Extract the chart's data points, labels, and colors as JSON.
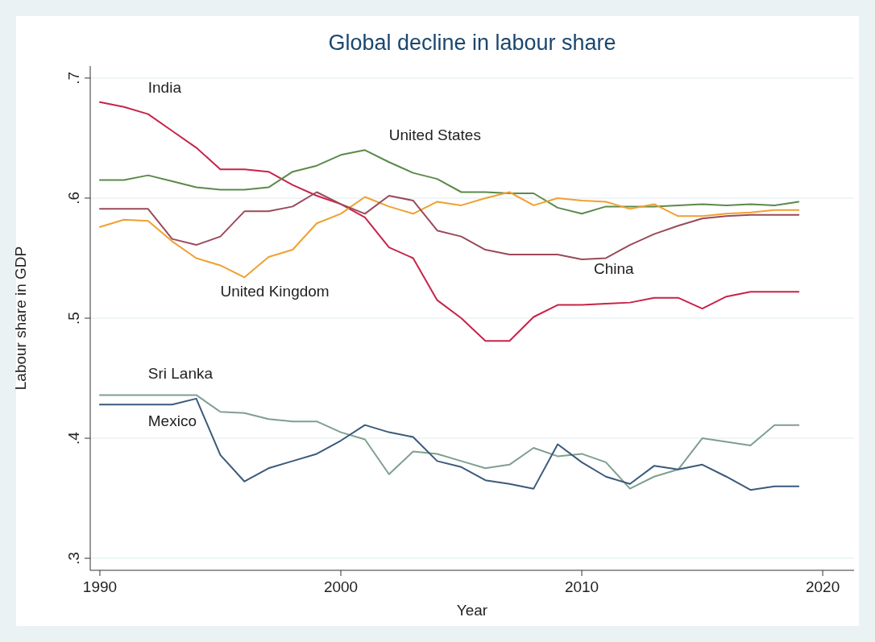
{
  "chart_data": {
    "type": "line",
    "title": "Global decline in labour share",
    "xlabel": "Year",
    "ylabel": "Labour share in GDP",
    "x": [
      1990,
      1991,
      1992,
      1993,
      1994,
      1995,
      1996,
      1997,
      1998,
      1999,
      2000,
      2001,
      2002,
      2003,
      2004,
      2005,
      2006,
      2007,
      2008,
      2009,
      2010,
      2011,
      2012,
      2013,
      2014,
      2015,
      2016,
      2017,
      2018,
      2019
    ],
    "xlim": [
      1989.6,
      2021.3
    ],
    "xticks": [
      1990,
      2000,
      2010,
      2020
    ],
    "ylim": [
      0.29,
      0.71
    ],
    "yticks": [
      {
        "value": 0.3,
        "label": ".3"
      },
      {
        "value": 0.4,
        "label": ".4"
      },
      {
        "value": 0.5,
        "label": ".5"
      },
      {
        "value": 0.6,
        "label": ".6"
      },
      {
        "value": 0.7,
        "label": ".7"
      }
    ],
    "grid": "y",
    "legend": false,
    "marker": "none",
    "line_style": "solid",
    "series": [
      {
        "name": "India",
        "color": "#c8234a",
        "values": [
          0.68,
          0.676,
          0.67,
          0.656,
          0.642,
          0.624,
          0.624,
          0.622,
          0.611,
          0.602,
          0.595,
          0.584,
          0.559,
          0.55,
          0.515,
          0.5,
          0.481,
          0.481,
          0.501,
          0.511,
          0.511,
          0.512,
          0.513,
          0.517,
          0.517,
          0.508,
          0.518,
          0.522,
          0.522,
          0.522
        ]
      },
      {
        "name": "United States",
        "color": "#5a8a4a",
        "values": [
          0.615,
          0.615,
          0.619,
          0.614,
          0.609,
          0.607,
          0.607,
          0.609,
          0.622,
          0.627,
          0.636,
          0.64,
          0.63,
          0.621,
          0.616,
          0.605,
          0.605,
          0.604,
          0.604,
          0.592,
          0.587,
          0.593,
          0.593,
          0.593,
          0.594,
          0.595,
          0.594,
          0.595,
          0.594,
          0.597
        ]
      },
      {
        "name": "United Kingdom",
        "color": "#f0a030",
        "values": [
          0.576,
          0.582,
          0.581,
          0.564,
          0.55,
          0.544,
          0.534,
          0.551,
          0.557,
          0.579,
          0.587,
          0.601,
          0.593,
          0.587,
          0.597,
          0.594,
          0.6,
          0.605,
          0.594,
          0.6,
          0.598,
          0.597,
          0.591,
          0.595,
          0.585,
          0.585,
          0.587,
          0.588,
          0.59,
          0.59
        ]
      },
      {
        "name": "China",
        "color": "#9a4a5a",
        "values": [
          0.591,
          0.591,
          0.591,
          0.566,
          0.561,
          0.568,
          0.589,
          0.589,
          0.593,
          0.605,
          0.595,
          0.587,
          0.602,
          0.598,
          0.573,
          0.568,
          0.557,
          0.553,
          0.553,
          0.553,
          0.549,
          0.55,
          0.561,
          0.57,
          0.577,
          0.583,
          0.585,
          0.586,
          0.586,
          0.586
        ]
      },
      {
        "name": "Sri Lanka",
        "color": "#7f9f8f",
        "values": [
          0.436,
          0.436,
          0.436,
          0.436,
          0.436,
          0.422,
          0.421,
          0.416,
          0.414,
          0.414,
          0.405,
          0.399,
          0.37,
          0.389,
          0.387,
          0.381,
          0.375,
          0.378,
          0.392,
          0.385,
          0.387,
          0.38,
          0.358,
          0.368,
          0.374,
          0.4,
          0.397,
          0.394,
          0.411,
          0.411
        ]
      },
      {
        "name": "Mexico",
        "color": "#3a5a7a",
        "values": [
          0.428,
          0.428,
          0.428,
          0.428,
          0.433,
          0.386,
          0.364,
          0.375,
          0.381,
          0.387,
          0.398,
          0.411,
          0.405,
          0.401,
          0.381,
          0.376,
          0.365,
          0.362,
          0.358,
          0.395,
          0.38,
          0.368,
          0.362,
          0.377,
          0.374,
          0.378,
          0.368,
          0.357,
          0.36,
          0.36
        ]
      }
    ]
  }
}
